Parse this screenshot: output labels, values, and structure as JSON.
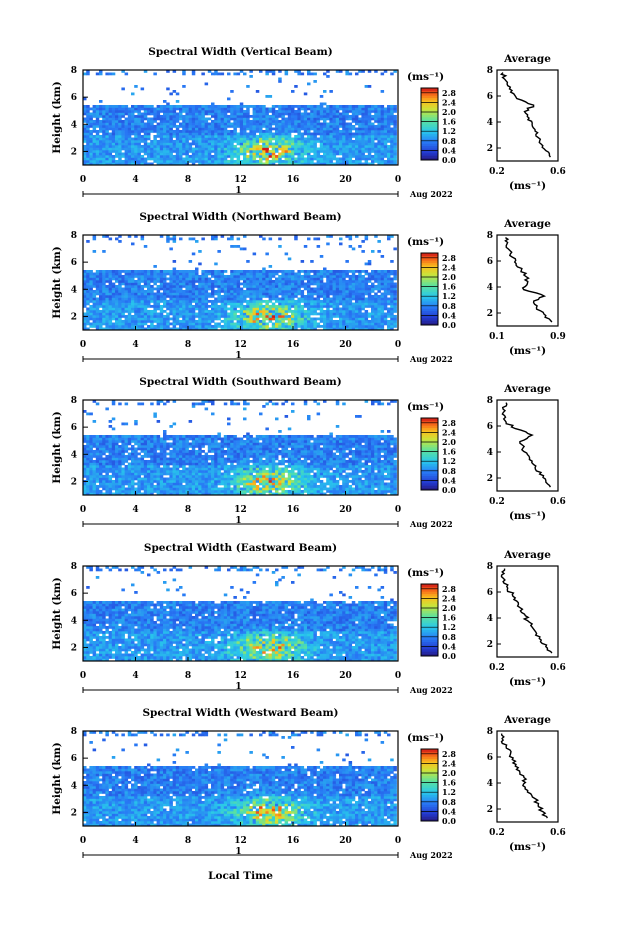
{
  "figure": {
    "xlabel_bottom": "Local Time",
    "date_day": "1",
    "date_label": "Aug 2022"
  },
  "chart_data": [
    {
      "type": "heatmap",
      "title": "Spectral Width (Vertical Beam)",
      "xlabel": "",
      "ylabel": "Height (km)",
      "xlim": [
        0,
        24
      ],
      "ylim": [
        1.0,
        8.0
      ],
      "x_ticks": [
        "0",
        "4",
        "8",
        "12",
        "16",
        "20",
        "0"
      ],
      "y_ticks": [
        "2",
        "4",
        "6",
        "8"
      ],
      "colorbar": {
        "unit": "(ms⁻¹)",
        "ticks": [
          "0.0",
          "0.4",
          "0.8",
          "1.2",
          "1.6",
          "2.0",
          "2.4",
          "2.8"
        ],
        "range": [
          0,
          3.0
        ]
      },
      "profile": {
        "title": "Average",
        "xlabel": "(ms⁻¹)",
        "x_ticks": [
          "0.2",
          "0.6"
        ],
        "xlim": [
          0.2,
          0.6
        ],
        "y_ticks": [
          "2",
          "4",
          "6",
          "8"
        ],
        "height": [
          1.3,
          1.8,
          2.3,
          2.8,
          3.3,
          3.8,
          4.3,
          4.8,
          5.3,
          5.8,
          6.3,
          6.8,
          7.3,
          7.8
        ],
        "values": [
          0.55,
          0.52,
          0.49,
          0.47,
          0.45,
          0.43,
          0.41,
          0.38,
          0.44,
          0.33,
          0.29,
          0.27,
          0.25,
          0.24
        ]
      }
    },
    {
      "type": "heatmap",
      "title": "Spectral Width (Northward Beam)",
      "xlabel": "",
      "ylabel": "Height (km)",
      "xlim": [
        0,
        24
      ],
      "ylim": [
        1.0,
        8.0
      ],
      "x_ticks": [
        "0",
        "4",
        "8",
        "12",
        "16",
        "20",
        "0"
      ],
      "y_ticks": [
        "2",
        "4",
        "6",
        "8"
      ],
      "colorbar": {
        "unit": "(ms⁻¹)",
        "ticks": [
          "0.0",
          "0.4",
          "0.8",
          "1.2",
          "1.6",
          "2.0",
          "2.4",
          "2.8"
        ],
        "range": [
          0,
          3.0
        ]
      },
      "profile": {
        "title": "Average",
        "xlabel": "(ms⁻¹)",
        "x_ticks": [
          "0.1",
          "0.9"
        ],
        "xlim": [
          0.1,
          0.9
        ],
        "y_ticks": [
          "2",
          "4",
          "6",
          "8"
        ],
        "height": [
          1.3,
          1.8,
          2.3,
          2.8,
          3.3,
          3.8,
          4.3,
          4.8,
          5.3,
          5.8,
          6.3,
          6.8,
          7.3,
          7.8
        ],
        "values": [
          0.82,
          0.74,
          0.62,
          0.58,
          0.72,
          0.45,
          0.5,
          0.48,
          0.42,
          0.35,
          0.3,
          0.27,
          0.23,
          0.21
        ]
      }
    },
    {
      "type": "heatmap",
      "title": "Spectral Width (Southward Beam)",
      "xlabel": "",
      "ylabel": "Height (km)",
      "xlim": [
        0,
        24
      ],
      "ylim": [
        1.0,
        8.0
      ],
      "x_ticks": [
        "0",
        "4",
        "8",
        "12",
        "16",
        "20",
        "0"
      ],
      "y_ticks": [
        "2",
        "4",
        "6",
        "8"
      ],
      "colorbar": {
        "unit": "(ms⁻¹)",
        "ticks": [
          "0.0",
          "0.4",
          "0.8",
          "1.2",
          "1.6",
          "2.0",
          "2.4",
          "2.8"
        ],
        "range": [
          0,
          3.0
        ]
      },
      "profile": {
        "title": "Average",
        "xlabel": "(ms⁻¹)",
        "x_ticks": [
          "0.2",
          "0.6"
        ],
        "xlim": [
          0.2,
          0.6
        ],
        "y_ticks": [
          "2",
          "4",
          "6",
          "8"
        ],
        "height": [
          1.3,
          1.8,
          2.3,
          2.8,
          3.3,
          3.8,
          4.3,
          4.8,
          5.3,
          5.8,
          6.3,
          6.8,
          7.3,
          7.8
        ],
        "values": [
          0.55,
          0.52,
          0.48,
          0.45,
          0.43,
          0.4,
          0.37,
          0.35,
          0.43,
          0.32,
          0.26,
          0.25,
          0.24,
          0.26
        ]
      }
    },
    {
      "type": "heatmap",
      "title": "Spectral Width (Eastward Beam)",
      "xlabel": "",
      "ylabel": "Height (km)",
      "xlim": [
        0,
        24
      ],
      "ylim": [
        1.0,
        8.0
      ],
      "x_ticks": [
        "0",
        "4",
        "8",
        "12",
        "16",
        "20",
        "0"
      ],
      "y_ticks": [
        "2",
        "4",
        "6",
        "8"
      ],
      "colorbar": {
        "unit": "(ms⁻¹)",
        "ticks": [
          "0.0",
          "0.4",
          "0.8",
          "1.2",
          "1.6",
          "2.0",
          "2.4",
          "2.8"
        ],
        "range": [
          0,
          3.0
        ]
      },
      "profile": {
        "title": "Average",
        "xlabel": "(ms⁻¹)",
        "x_ticks": [
          "0.2",
          "0.6"
        ],
        "xlim": [
          0.2,
          0.6
        ],
        "y_ticks": [
          "2",
          "4",
          "6",
          "8"
        ],
        "height": [
          1.3,
          1.8,
          2.3,
          2.8,
          3.3,
          3.8,
          4.3,
          4.8,
          5.3,
          5.8,
          6.3,
          6.8,
          7.3,
          7.8
        ],
        "values": [
          0.56,
          0.52,
          0.49,
          0.46,
          0.43,
          0.4,
          0.38,
          0.35,
          0.33,
          0.3,
          0.27,
          0.24,
          0.23,
          0.25
        ]
      }
    },
    {
      "type": "heatmap",
      "title": "Spectral Width (Westward Beam)",
      "xlabel": "",
      "ylabel": "Height (km)",
      "xlim": [
        0,
        24
      ],
      "ylim": [
        1.0,
        8.0
      ],
      "x_ticks": [
        "0",
        "4",
        "8",
        "12",
        "16",
        "20",
        "0"
      ],
      "y_ticks": [
        "2",
        "4",
        "6",
        "8"
      ],
      "colorbar": {
        "unit": "(ms⁻¹)",
        "ticks": [
          "0.0",
          "0.4",
          "0.8",
          "1.2",
          "1.6",
          "2.0",
          "2.4",
          "2.8"
        ],
        "range": [
          0,
          3.0
        ]
      },
      "profile": {
        "title": "Average",
        "xlabel": "(ms⁻¹)",
        "x_ticks": [
          "0.2",
          "0.6"
        ],
        "xlim": [
          0.2,
          0.6
        ],
        "y_ticks": [
          "2",
          "4",
          "6",
          "8"
        ],
        "height": [
          1.3,
          1.8,
          2.3,
          2.8,
          3.3,
          3.8,
          4.3,
          4.8,
          5.3,
          5.8,
          6.3,
          6.8,
          7.3,
          7.8
        ],
        "values": [
          0.53,
          0.5,
          0.47,
          0.45,
          0.4,
          0.37,
          0.39,
          0.35,
          0.32,
          0.3,
          0.29,
          0.26,
          0.24,
          0.23
        ]
      }
    }
  ]
}
